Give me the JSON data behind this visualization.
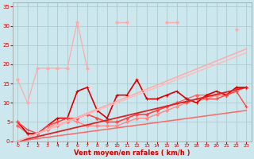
{
  "xlabel": "Vent moyen/en rafales ( km/h )",
  "bg_color": "#cce8ee",
  "grid_color": "#aacccc",
  "xlim": [
    -0.5,
    23.5
  ],
  "ylim": [
    0,
    36
  ],
  "xticks": [
    0,
    1,
    2,
    3,
    4,
    5,
    6,
    7,
    8,
    9,
    10,
    11,
    12,
    13,
    14,
    15,
    16,
    17,
    18,
    19,
    20,
    21,
    22,
    23
  ],
  "yticks": [
    0,
    5,
    10,
    15,
    20,
    25,
    30,
    35
  ],
  "series": [
    {
      "segments": [
        {
          "x": [
            0,
            1,
            2,
            3,
            4,
            5,
            6,
            7
          ],
          "y": [
            16,
            10,
            19,
            19,
            19,
            19,
            31,
            19
          ]
        },
        {
          "x": [
            10,
            11
          ],
          "y": [
            31,
            31
          ]
        },
        {
          "x": [
            15,
            16
          ],
          "y": [
            31,
            31
          ]
        },
        {
          "x": [
            22
          ],
          "y": [
            29
          ]
        }
      ],
      "color": "#ffaaaa",
      "lw": 0.9,
      "marker": "D",
      "ms": 2.0
    },
    {
      "segments": [
        {
          "x": [
            0,
            1,
            2,
            3,
            4,
            5,
            6,
            7,
            8,
            9,
            10,
            11,
            12,
            13,
            14,
            15,
            16,
            17,
            18,
            19,
            20,
            21,
            22,
            23
          ],
          "y": [
            4,
            2,
            2,
            3,
            4,
            5,
            6,
            7,
            6,
            5,
            5,
            6,
            7,
            7,
            8,
            9,
            10,
            11,
            12,
            12,
            12,
            12,
            14,
            14
          ]
        }
      ],
      "color": "#ff6666",
      "lw": 1.0,
      "marker": "D",
      "ms": 2.0
    },
    {
      "segments": [
        {
          "x": [
            0,
            1,
            2,
            3,
            4,
            5,
            6,
            7,
            8,
            9,
            10,
            11,
            12,
            13,
            14,
            15,
            16,
            17,
            18,
            19,
            20,
            21,
            22,
            23
          ],
          "y": [
            5,
            2,
            2,
            3,
            5,
            6,
            5,
            4,
            4,
            4,
            4,
            5,
            6,
            6,
            7,
            8,
            9,
            10,
            11,
            11,
            12,
            12,
            13,
            14
          ]
        }
      ],
      "color": "#ff8888",
      "lw": 1.0,
      "marker": "D",
      "ms": 2.0
    },
    {
      "segments": [
        {
          "x": [
            0,
            1,
            2,
            3,
            4,
            5,
            6,
            7,
            8,
            9,
            10,
            11,
            12,
            13,
            14,
            15,
            16,
            17,
            18,
            19,
            20,
            21,
            22,
            23
          ],
          "y": [
            5,
            2,
            2,
            4,
            6,
            6,
            13,
            14,
            8,
            6,
            12,
            12,
            16,
            11,
            11,
            12,
            13,
            11,
            10,
            12,
            13,
            12,
            14,
            14
          ]
        }
      ],
      "color": "#dd0000",
      "lw": 1.2,
      "marker": "+",
      "ms": 3.5
    },
    {
      "segments": [
        {
          "x": [
            0,
            1,
            2,
            3,
            4,
            5,
            6,
            7,
            8,
            9,
            10,
            11,
            12,
            13,
            14,
            15,
            16,
            17,
            18,
            19,
            20,
            21,
            22,
            23
          ],
          "y": [
            5,
            3,
            2,
            4,
            5,
            6,
            6,
            7,
            6,
            5,
            5,
            6,
            7,
            7,
            8,
            9,
            10,
            10,
            11,
            11,
            11,
            12,
            13,
            9
          ]
        }
      ],
      "color": "#ff4444",
      "lw": 1.0,
      "marker": "+",
      "ms": 3.5
    },
    {
      "segments": [
        {
          "x": [
            0,
            23
          ],
          "y": [
            0,
            8
          ]
        }
      ],
      "color": "#ff6666",
      "lw": 1.1,
      "marker": null,
      "ms": 0
    },
    {
      "segments": [
        {
          "x": [
            0,
            23
          ],
          "y": [
            0,
            14
          ]
        }
      ],
      "color": "#dd2222",
      "lw": 1.3,
      "marker": null,
      "ms": 0
    },
    {
      "segments": [
        {
          "x": [
            0,
            23
          ],
          "y": [
            0,
            24
          ]
        }
      ],
      "color": "#ffaaaa",
      "lw": 1.1,
      "marker": null,
      "ms": 0
    },
    {
      "segments": [
        {
          "x": [
            0,
            23
          ],
          "y": [
            0,
            23
          ]
        }
      ],
      "color": "#ffbbbb",
      "lw": 1.1,
      "marker": null,
      "ms": 0
    }
  ]
}
